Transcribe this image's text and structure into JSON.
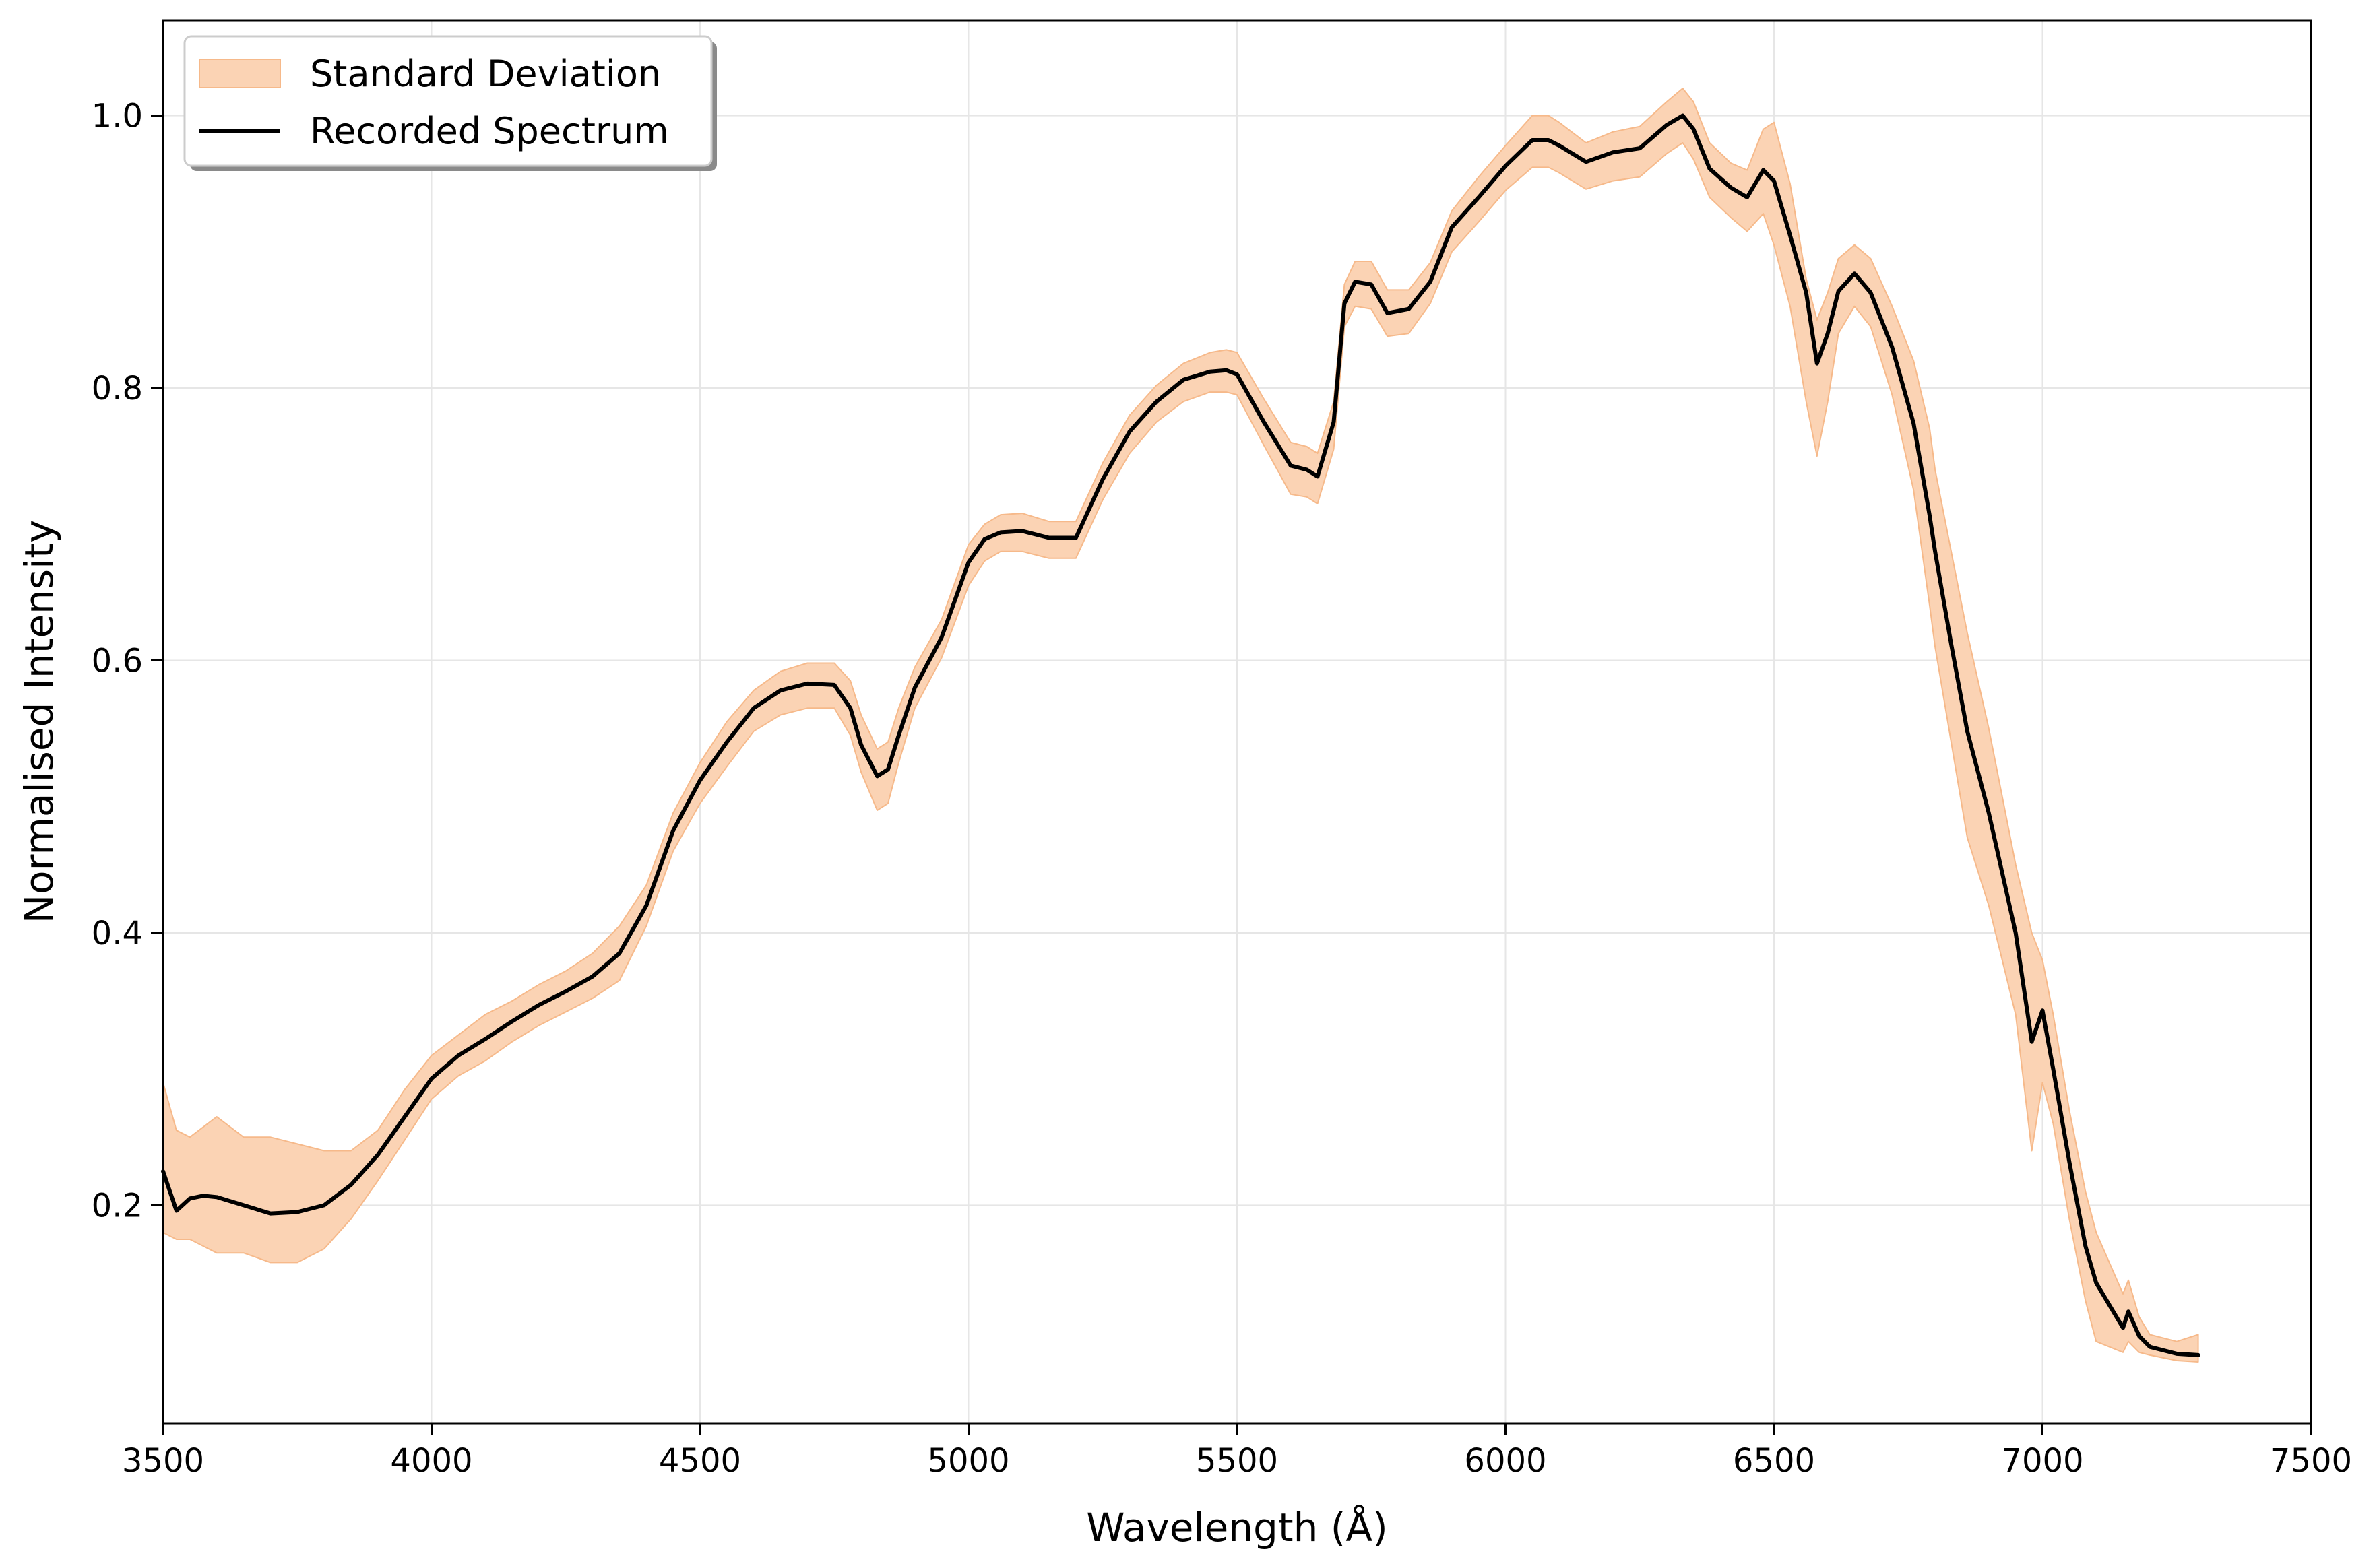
{
  "chart_data": {
    "type": "line",
    "xlabel": "Wavelength (Å)",
    "ylabel": "Normalised Intensity",
    "xlim": [
      3500,
      7500
    ],
    "ylim": [
      0.04,
      1.07
    ],
    "xticks": [
      3500,
      4000,
      4500,
      5000,
      5500,
      6000,
      6500,
      7000,
      7500
    ],
    "xtick_labels": [
      "3500",
      "4000",
      "4500",
      "5000",
      "5500",
      "6000",
      "6500",
      "7000",
      "7500"
    ],
    "yticks": [
      0.2,
      0.4,
      0.6,
      0.8,
      1.0
    ],
    "ytick_labels": [
      "0.2",
      "0.4",
      "0.6",
      "0.8",
      "1.0"
    ],
    "grid": true,
    "legend_position": "top-left",
    "colors": {
      "band": "#fbd3b4",
      "band_edge": "#f6b98a",
      "line": "#000000",
      "grid": "#e6e6e6"
    },
    "series": [
      {
        "name": "Recorded Spectrum",
        "type": "line",
        "x": [
          3500,
          3525,
          3550,
          3575,
          3600,
          3650,
          3700,
          3750,
          3800,
          3850,
          3900,
          3950,
          4000,
          4050,
          4100,
          4150,
          4200,
          4250,
          4300,
          4350,
          4400,
          4450,
          4500,
          4550,
          4600,
          4650,
          4700,
          4750,
          4780,
          4800,
          4830,
          4850,
          4870,
          4900,
          4950,
          5000,
          5030,
          5060,
          5100,
          5150,
          5200,
          5250,
          5300,
          5350,
          5400,
          5450,
          5480,
          5500,
          5550,
          5600,
          5630,
          5650,
          5680,
          5700,
          5720,
          5750,
          5780,
          5820,
          5860,
          5900,
          5950,
          6000,
          6050,
          6080,
          6100,
          6150,
          6200,
          6250,
          6300,
          6330,
          6350,
          6380,
          6420,
          6450,
          6480,
          6500,
          6530,
          6560,
          6580,
          6600,
          6620,
          6650,
          6680,
          6720,
          6760,
          6790,
          6800,
          6830,
          6860,
          6900,
          6950,
          6980,
          7000,
          7020,
          7050,
          7080,
          7100,
          7150,
          7160,
          7180,
          7200,
          7250,
          7290
        ],
        "values": [
          0.225,
          0.196,
          0.205,
          0.207,
          0.206,
          0.2,
          0.194,
          0.195,
          0.2,
          0.215,
          0.237,
          0.265,
          0.293,
          0.31,
          0.322,
          0.335,
          0.347,
          0.357,
          0.368,
          0.385,
          0.42,
          0.475,
          0.512,
          0.54,
          0.565,
          0.578,
          0.583,
          0.582,
          0.565,
          0.538,
          0.515,
          0.52,
          0.545,
          0.58,
          0.617,
          0.672,
          0.689,
          0.694,
          0.695,
          0.69,
          0.69,
          0.733,
          0.768,
          0.79,
          0.806,
          0.812,
          0.813,
          0.81,
          0.775,
          0.743,
          0.74,
          0.735,
          0.775,
          0.862,
          0.878,
          0.876,
          0.855,
          0.858,
          0.878,
          0.918,
          0.94,
          0.963,
          0.982,
          0.982,
          0.978,
          0.966,
          0.973,
          0.976,
          0.993,
          1.0,
          0.99,
          0.961,
          0.947,
          0.94,
          0.96,
          0.952,
          0.912,
          0.87,
          0.818,
          0.84,
          0.871,
          0.884,
          0.87,
          0.83,
          0.774,
          0.706,
          0.68,
          0.612,
          0.548,
          0.488,
          0.4,
          0.32,
          0.343,
          0.3,
          0.232,
          0.17,
          0.143,
          0.11,
          0.122,
          0.104,
          0.096,
          0.091,
          0.09
        ]
      },
      {
        "name": "Standard Deviation",
        "type": "band",
        "x": [
          3500,
          3525,
          3550,
          3600,
          3650,
          3700,
          3750,
          3800,
          3850,
          3900,
          3950,
          4000,
          4050,
          4100,
          4150,
          4200,
          4250,
          4300,
          4350,
          4400,
          4450,
          4500,
          4550,
          4600,
          4650,
          4700,
          4750,
          4780,
          4800,
          4830,
          4850,
          4870,
          4900,
          4950,
          5000,
          5030,
          5060,
          5100,
          5150,
          5200,
          5250,
          5300,
          5350,
          5400,
          5450,
          5480,
          5500,
          5550,
          5600,
          5630,
          5650,
          5680,
          5700,
          5720,
          5750,
          5780,
          5820,
          5860,
          5900,
          5950,
          6000,
          6050,
          6080,
          6100,
          6150,
          6200,
          6250,
          6300,
          6330,
          6350,
          6380,
          6420,
          6450,
          6480,
          6500,
          6530,
          6560,
          6580,
          6600,
          6620,
          6650,
          6680,
          6720,
          6760,
          6790,
          6800,
          6830,
          6860,
          6900,
          6950,
          6980,
          7000,
          7020,
          7050,
          7080,
          7100,
          7150,
          7160,
          7180,
          7200,
          7250,
          7290
        ],
        "upper": [
          0.29,
          0.255,
          0.25,
          0.265,
          0.25,
          0.25,
          0.245,
          0.24,
          0.24,
          0.255,
          0.285,
          0.31,
          0.325,
          0.34,
          0.35,
          0.362,
          0.372,
          0.385,
          0.405,
          0.435,
          0.488,
          0.525,
          0.555,
          0.578,
          0.592,
          0.598,
          0.598,
          0.585,
          0.56,
          0.535,
          0.54,
          0.565,
          0.595,
          0.63,
          0.685,
          0.7,
          0.707,
          0.708,
          0.702,
          0.702,
          0.745,
          0.78,
          0.802,
          0.818,
          0.826,
          0.828,
          0.826,
          0.792,
          0.76,
          0.757,
          0.752,
          0.79,
          0.876,
          0.893,
          0.893,
          0.872,
          0.872,
          0.892,
          0.93,
          0.955,
          0.978,
          1.0,
          1.0,
          0.995,
          0.98,
          0.988,
          0.992,
          1.01,
          1.02,
          1.01,
          0.98,
          0.965,
          0.96,
          0.99,
          0.995,
          0.95,
          0.88,
          0.85,
          0.87,
          0.895,
          0.905,
          0.895,
          0.86,
          0.82,
          0.77,
          0.74,
          0.68,
          0.62,
          0.55,
          0.45,
          0.4,
          0.38,
          0.34,
          0.27,
          0.21,
          0.18,
          0.135,
          0.145,
          0.118,
          0.105,
          0.1,
          0.105
        ],
        "lower": [
          0.18,
          0.175,
          0.175,
          0.165,
          0.165,
          0.158,
          0.158,
          0.168,
          0.19,
          0.218,
          0.248,
          0.278,
          0.295,
          0.306,
          0.32,
          0.332,
          0.342,
          0.352,
          0.365,
          0.405,
          0.46,
          0.495,
          0.522,
          0.548,
          0.56,
          0.565,
          0.565,
          0.545,
          0.518,
          0.49,
          0.495,
          0.525,
          0.565,
          0.602,
          0.655,
          0.673,
          0.68,
          0.68,
          0.675,
          0.675,
          0.718,
          0.752,
          0.775,
          0.79,
          0.797,
          0.797,
          0.795,
          0.758,
          0.722,
          0.72,
          0.715,
          0.755,
          0.845,
          0.86,
          0.858,
          0.838,
          0.84,
          0.862,
          0.9,
          0.922,
          0.945,
          0.962,
          0.962,
          0.958,
          0.946,
          0.952,
          0.955,
          0.972,
          0.98,
          0.968,
          0.94,
          0.925,
          0.915,
          0.928,
          0.905,
          0.86,
          0.79,
          0.75,
          0.79,
          0.84,
          0.86,
          0.845,
          0.795,
          0.725,
          0.64,
          0.61,
          0.54,
          0.47,
          0.42,
          0.34,
          0.24,
          0.29,
          0.26,
          0.19,
          0.13,
          0.1,
          0.092,
          0.1,
          0.092,
          0.09,
          0.086,
          0.085
        ]
      }
    ]
  },
  "legend": {
    "items": [
      {
        "label": "Standard Deviation"
      },
      {
        "label": "Recorded Spectrum"
      }
    ]
  }
}
